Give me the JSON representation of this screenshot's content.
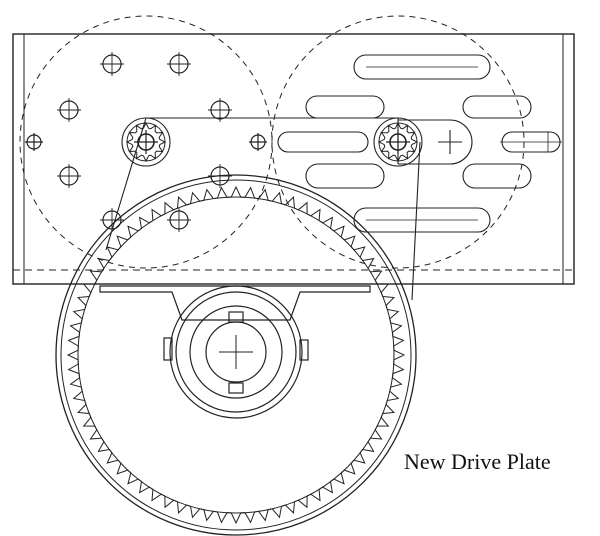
{
  "caption": "New Drive Plate",
  "colors": {
    "line": "#222222",
    "background": "#ffffff"
  }
}
